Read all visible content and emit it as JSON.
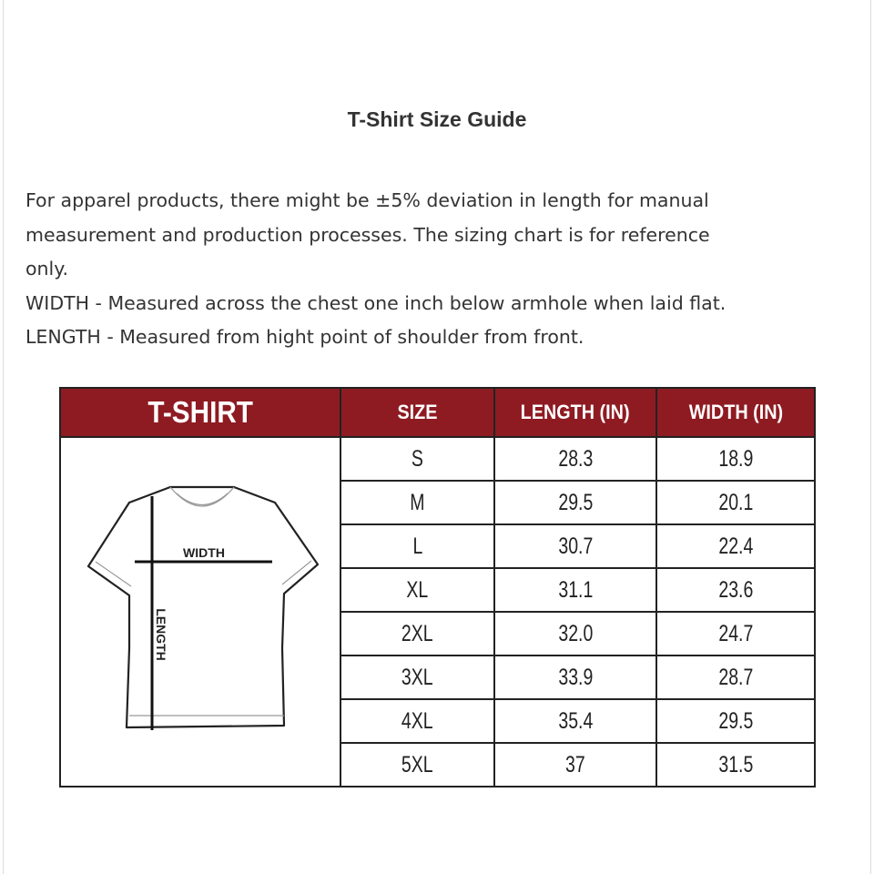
{
  "title": "T-Shirt Size Guide",
  "description": [
    "For apparel products, there might be ±5% deviation in length for manual",
    "measurement and production processes. The sizing chart is for reference",
    "only.",
    "WIDTH - Measured across the chest one inch below armhole when laid flat.",
    "LENGTH - Measured from hight point of shoulder from front."
  ],
  "table": {
    "header_color": "#8e1b22",
    "headers": [
      "T-SHIRT",
      "SIZE",
      "LENGTH (IN)",
      "WIDTH (IN)"
    ],
    "diagram_labels": {
      "width": "WIDTH",
      "length": "LENGTH"
    },
    "rows": [
      {
        "size": "S",
        "length": "28.3",
        "width": "18.9"
      },
      {
        "size": "M",
        "length": "29.5",
        "width": "20.1"
      },
      {
        "size": "L",
        "length": "30.7",
        "width": "22.4"
      },
      {
        "size": "XL",
        "length": "31.1",
        "width": "23.6"
      },
      {
        "size": "2XL",
        "length": "32.0",
        "width": "24.7"
      },
      {
        "size": "3XL",
        "length": "33.9",
        "width": "28.7"
      },
      {
        "size": "4XL",
        "length": "35.4",
        "width": "29.5"
      },
      {
        "size": "5XL",
        "length": "37",
        "width": "31.5"
      }
    ]
  }
}
